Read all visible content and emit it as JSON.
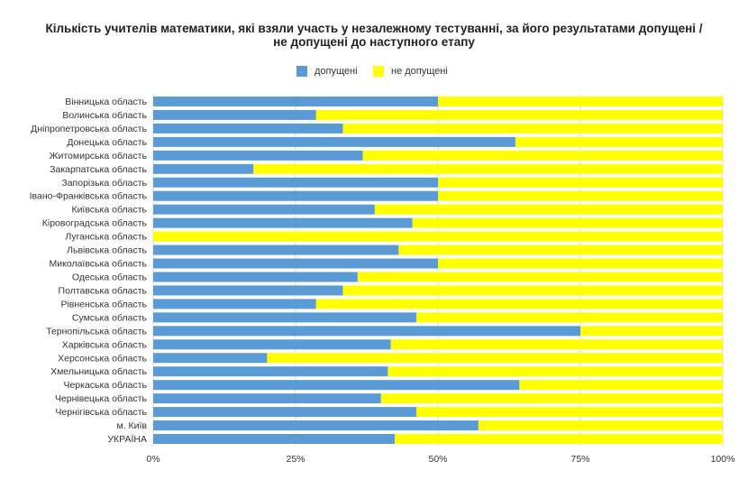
{
  "title_line_1": "Кількість учителів математики, які взяли участь у незалежному тестуванні, за його результатами допущені /",
  "title_line_2": "не допущені до наступного етапу",
  "colors": {
    "admitted": "#5b9bd5",
    "not_admitted": "#ffff00",
    "grid": "#d9d9d9",
    "text": "#333333"
  },
  "chart_data": {
    "type": "bar",
    "orientation": "horizontal",
    "stacked": "percent",
    "categories": [
      "Вінницька область",
      "Волинська область",
      "Дніпропетровська область",
      "Донецька область",
      "Житомирська область",
      "Закарпатська область",
      "Запорізька область",
      "Івано-Франківська область",
      "Київська область",
      "Кіровоградська область",
      "Луганська область",
      "Львівська область",
      "Миколаївська область",
      "Одеська область",
      "Полтавська область",
      "Рівненська область",
      "Сумська область",
      "Тернопільська область",
      "Харківська область",
      "Херсонська область",
      "Хмельницька область",
      "Черкаська область",
      "Чернівецька область",
      "Чернігівська область",
      "м. Київ",
      "УКРАЇНА"
    ],
    "series": [
      {
        "name": "допущені",
        "color": "#5b9bd5",
        "values": [
          50,
          28.6,
          33.3,
          63.6,
          36.8,
          17.6,
          50,
          50,
          38.9,
          45.5,
          0,
          43.1,
          50,
          35.9,
          33.3,
          28.6,
          46.2,
          75,
          41.7,
          20,
          41.2,
          64.3,
          40,
          46.2,
          57.1,
          42.4
        ]
      },
      {
        "name": "не допущені",
        "color": "#ffff00",
        "values": [
          50,
          71.4,
          66.7,
          36.4,
          63.2,
          82.4,
          50,
          50,
          61.1,
          54.5,
          100,
          56.9,
          50,
          64.1,
          66.7,
          71.4,
          53.8,
          25,
          58.3,
          80,
          58.8,
          35.7,
          60,
          53.8,
          42.9,
          57.6
        ]
      }
    ],
    "x_ticks": [
      "0%",
      "25%",
      "50%",
      "75%",
      "100%"
    ],
    "xlim": [
      0,
      100
    ],
    "grid": true,
    "legend_position": "top"
  }
}
